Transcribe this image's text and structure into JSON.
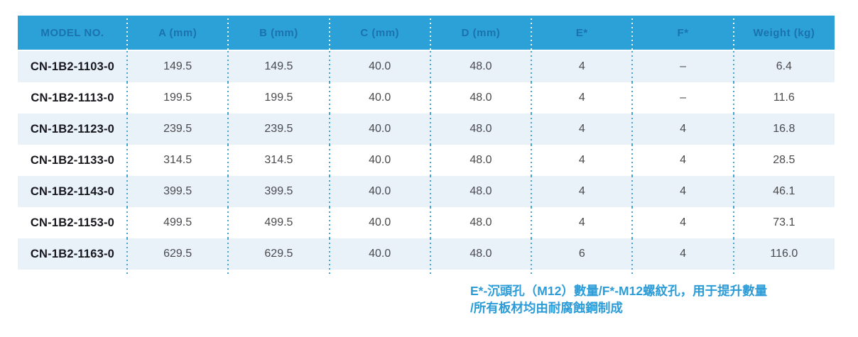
{
  "table": {
    "columns": [
      {
        "key": "model",
        "label": "MODEL NO."
      },
      {
        "key": "a",
        "label": "A (mm)"
      },
      {
        "key": "b",
        "label": "B (mm)"
      },
      {
        "key": "c",
        "label": "C (mm)"
      },
      {
        "key": "d",
        "label": "D (mm)"
      },
      {
        "key": "e",
        "label": "E*"
      },
      {
        "key": "f",
        "label": "F*"
      },
      {
        "key": "weight",
        "label": "Weight (kg)"
      }
    ],
    "rows": [
      [
        "CN-1B2-1103-0",
        "149.5",
        "149.5",
        "40.0",
        "48.0",
        "4",
        "–",
        "6.4"
      ],
      [
        "CN-1B2-1113-0",
        "199.5",
        "199.5",
        "40.0",
        "48.0",
        "4",
        "–",
        "11.6"
      ],
      [
        "CN-1B2-1123-0",
        "239.5",
        "239.5",
        "40.0",
        "48.0",
        "4",
        "4",
        "16.8"
      ],
      [
        "CN-1B2-1133-0",
        "314.5",
        "314.5",
        "40.0",
        "48.0",
        "4",
        "4",
        "28.5"
      ],
      [
        "CN-1B2-1143-0",
        "399.5",
        "399.5",
        "40.0",
        "48.0",
        "4",
        "4",
        "46.1"
      ],
      [
        "CN-1B2-1153-0",
        "499.5",
        "499.5",
        "40.0",
        "48.0",
        "4",
        "4",
        "73.1"
      ],
      [
        "CN-1B2-1163-0",
        "629.5",
        "629.5",
        "40.0",
        "48.0",
        "6",
        "4",
        "116.0"
      ]
    ]
  },
  "footnote": {
    "lines": [
      "E*-沉頭孔（M12）數量/F*-M12螺紋孔，用于提升數量",
      "/所有板材均由耐腐蝕鋼制成"
    ]
  },
  "colors": {
    "header_bg": "#2ba1d8",
    "header_text": "#1b72ac",
    "row_alt_bg": "#e9f1f9",
    "row_bg": "#ffffff",
    "body_text": "#4b4b4f",
    "model_text": "#17171d",
    "separator_dots": "#49a4cd",
    "footnote_text": "#2b9cd8"
  }
}
